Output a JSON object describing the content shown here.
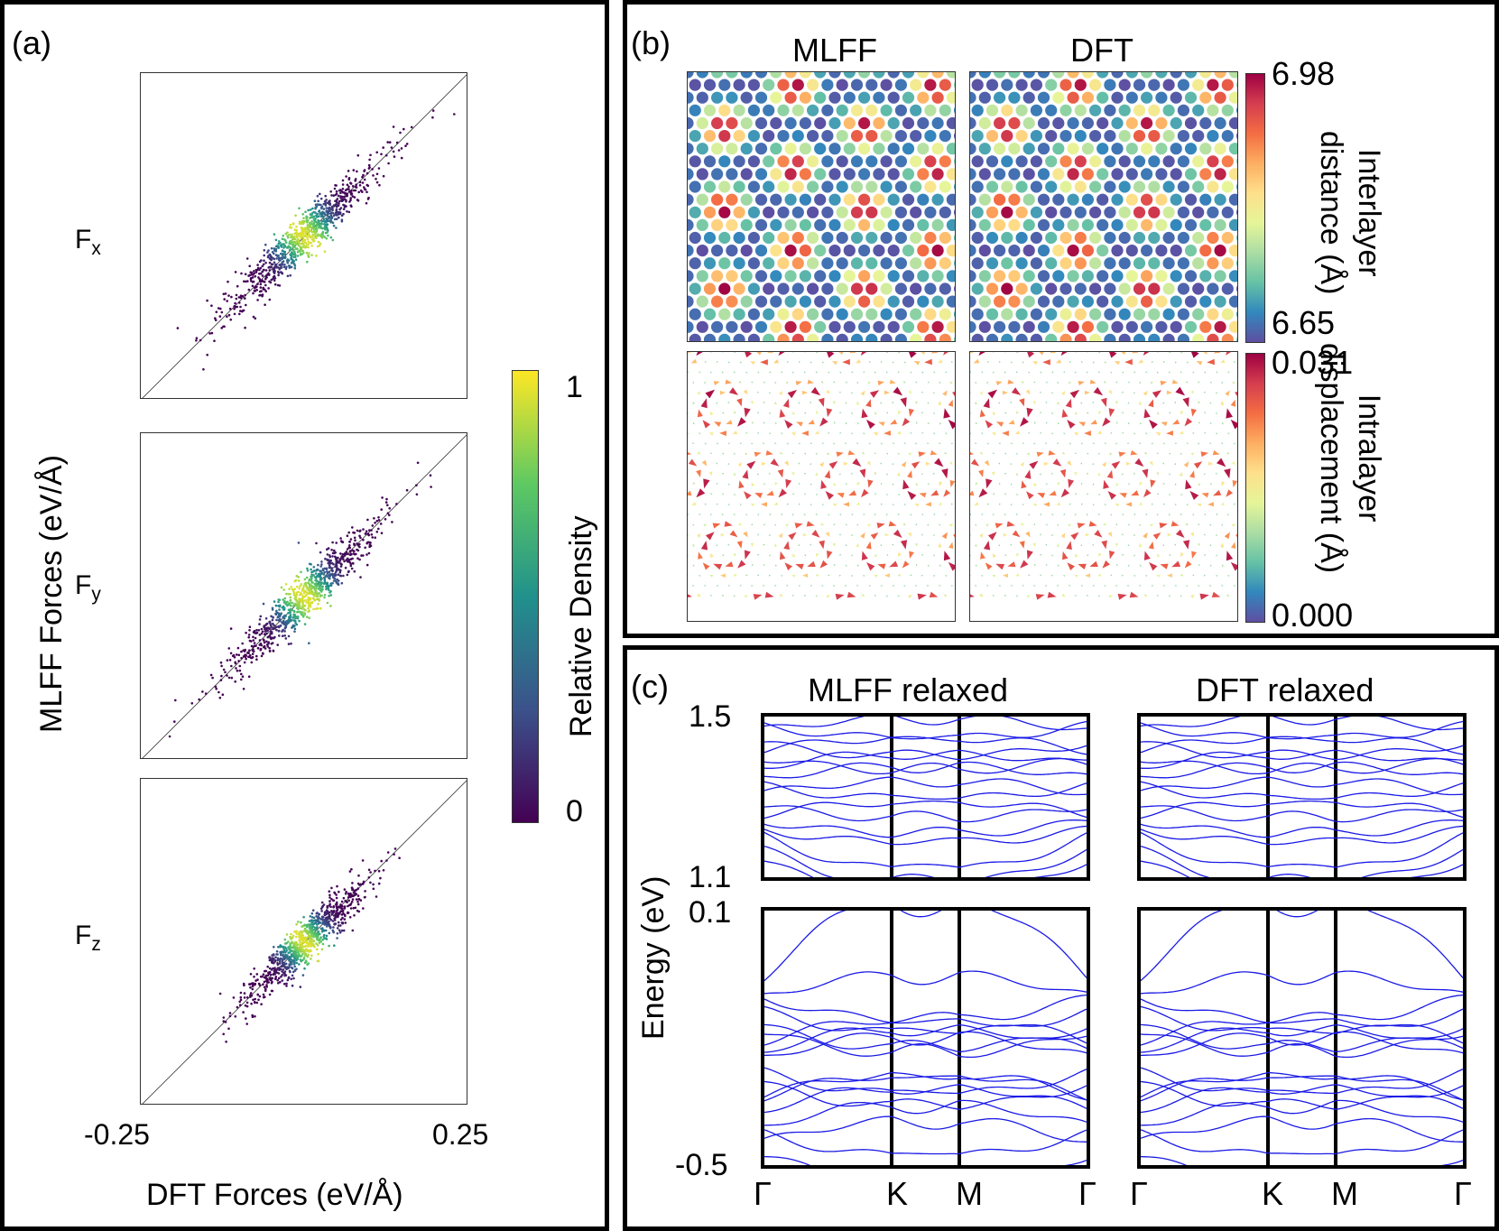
{
  "chart_data": [
    {
      "panel": "(a)",
      "type": "scatter",
      "xlabel": "DFT Forces (eV/Å)",
      "ylabel": "MLFF Forces (eV/Å)",
      "xticks": [
        "-0.25",
        "0.25"
      ],
      "xlim": [
        -0.25,
        0.25
      ],
      "ylim": [
        -0.25,
        0.25
      ],
      "subplots": [
        "Fx",
        "Fy",
        "Fz"
      ],
      "colorbar": {
        "label": "Relative Density",
        "min": "0",
        "max": "1",
        "cmap": "viridis"
      },
      "series": [
        {
          "name": "Fx",
          "center": [
            0.0,
            0.0
          ],
          "spread_major": 0.05,
          "spread_minor": 0.004
        },
        {
          "name": "Fy",
          "center": [
            0.0,
            0.0
          ],
          "spread_major": 0.05,
          "spread_minor": 0.004
        },
        {
          "name": "Fz",
          "center": [
            0.0,
            0.0
          ],
          "spread_major": 0.04,
          "spread_minor": 0.004
        }
      ]
    },
    {
      "panel": "(b)",
      "type": "heatmap",
      "columns": [
        "MLFF",
        "DFT"
      ],
      "rows": [
        {
          "name": "Interlayer distance (Å)",
          "min": "6.65",
          "max": "6.98",
          "label_lines": [
            "Interlayer",
            "distance (Å)"
          ]
        },
        {
          "name": "Intralayer displacement (Å)",
          "min": "0.000",
          "max": "0.031",
          "label_lines": [
            "Intralayer",
            "displacement (Å)"
          ]
        }
      ],
      "cmap": "spectral"
    },
    {
      "panel": "(c)",
      "type": "line",
      "titles": [
        "MLFF relaxed",
        "DFT relaxed"
      ],
      "ylabel": "Energy (eV)",
      "kpath": [
        "Γ",
        "K",
        "M",
        "Γ"
      ],
      "top_range": {
        "yticks": [
          "1.5",
          "1.1"
        ],
        "ylim": [
          1.1,
          1.5
        ]
      },
      "bottom_range": {
        "yticks": [
          "0.1",
          "-0.5"
        ],
        "ylim": [
          -0.5,
          0.1
        ]
      },
      "line_color": "#1a1ae6"
    }
  ],
  "colors": {
    "frame": "#000000",
    "bands": "#1a1ae6"
  }
}
